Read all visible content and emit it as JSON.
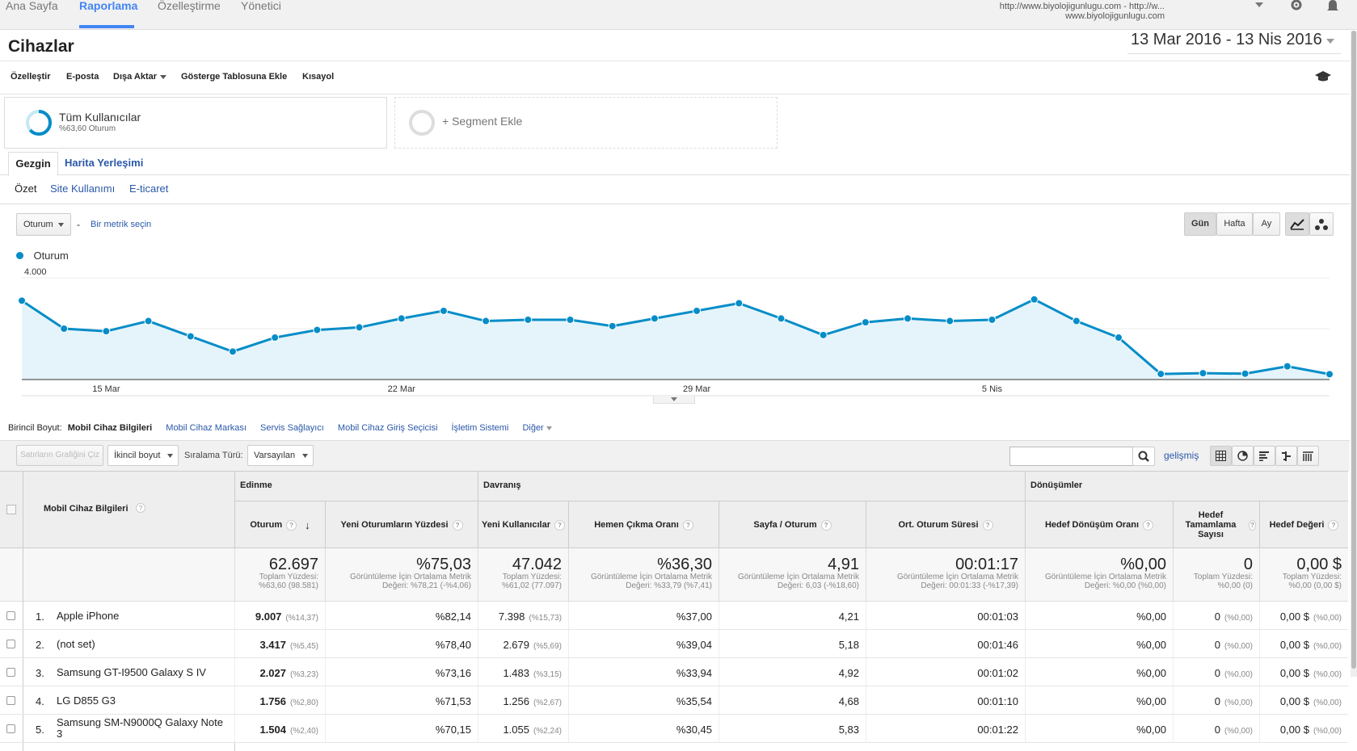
{
  "topnav": {
    "tabs": [
      "Ana Sayfa",
      "Raporlama",
      "Özelleştirme",
      "Yönetici"
    ],
    "active": "Raporlama",
    "property_line1": "http://www.biyolojigunlugu.com - http://w...",
    "property_line2": "www.biyolojigunlugu.com"
  },
  "header": {
    "title": "Cihazlar",
    "date_range": "13 Mar 2016 - 13 Nis 2016"
  },
  "toolbar": {
    "customize": "Özelleştir",
    "email": "E-posta",
    "export": "Dışa Aktar",
    "add_dashboard": "Gösterge Tablosuna Ekle",
    "shortcut": "Kısayol"
  },
  "segments": {
    "all_users_name": "Tüm Kullanıcılar",
    "all_users_sub": "%63,60 Oturum",
    "add_segment": "+ Segment Ekle"
  },
  "view_tabs": {
    "explorer": "Gezgin",
    "map": "Harita Yerleşimi"
  },
  "sub_tabs": {
    "summary": "Özet",
    "site_usage": "Site Kullanımı",
    "ecommerce": "E-ticaret"
  },
  "chart_controls": {
    "metric": "Oturum",
    "dash": "-",
    "pick_metric": "Bir metrik seçin",
    "day": "Gün",
    "week": "Hafta",
    "month": "Ay"
  },
  "chart_data": {
    "type": "area",
    "series": [
      {
        "name": "Oturum",
        "values": [
          3100,
          2000,
          1900,
          2300,
          1700,
          1100,
          1650,
          1950,
          2050,
          2400,
          2700,
          2300,
          2350,
          2350,
          2100,
          2400,
          2700,
          3000,
          2400,
          1750,
          2250,
          2400,
          2300,
          2350,
          3150,
          2300,
          1650,
          220,
          250,
          230,
          520,
          210
        ]
      }
    ],
    "color": "#058dc7",
    "fill": "#e5f4fb",
    "y_ticks": [
      "4.000",
      "2.000"
    ],
    "ylim": [
      0,
      4000
    ],
    "x_labels": [
      {
        "label": "15 Mar",
        "index": 2
      },
      {
        "label": "22 Mar",
        "index": 9
      },
      {
        "label": "29 Mar",
        "index": 16
      },
      {
        "label": "5 Nis",
        "index": 23
      }
    ],
    "grid": true,
    "legend": "top-left"
  },
  "dimensions": {
    "primary_label": "Birincil Boyut:",
    "active": "Mobil Cihaz Bilgileri",
    "options": [
      "Mobil Cihaz Markası",
      "Servis Sağlayıcı",
      "Mobil Cihaz Giriş Seçicisi",
      "İşletim Sistemi",
      "Diğer"
    ]
  },
  "table_controls": {
    "plot_rows": "Satırların Grafiğini Çiz",
    "secondary": "İkincil boyut",
    "sort_label": "Sıralama Türü:",
    "sort_value": "Varsayılan",
    "advanced": "gelişmiş"
  },
  "table": {
    "dimension_header": "Mobil Cihaz Bilgileri",
    "groups": [
      "Edinme",
      "Davranış",
      "Dönüşümler"
    ],
    "columns": [
      "Oturum",
      "Yeni Oturumların Yüzdesi",
      "Yeni Kullanıcılar",
      "Hemen Çıkma Oranı",
      "Sayfa / Oturum",
      "Ort. Oturum Süresi",
      "Hedef Dönüşüm Oranı",
      "Hedef Tamamlama Sayısı",
      "Hedef Değeri"
    ],
    "totals": [
      {
        "value": "62.697",
        "sub1": "Toplam Yüzdesi:",
        "sub2": "%63,60 (98.581)"
      },
      {
        "value": "%75,03",
        "sub1": "Görüntüleme İçin Ortalama Metrik",
        "sub2": "Değeri: %78,21 (-%4,06)"
      },
      {
        "value": "47.042",
        "sub1": "Toplam Yüzdesi:",
        "sub2": "%61,02 (77.097)"
      },
      {
        "value": "%36,30",
        "sub1": "Görüntüleme İçin Ortalama Metrik",
        "sub2": "Değeri: %33,79 (%7,41)"
      },
      {
        "value": "4,91",
        "sub1": "Görüntüleme İçin Ortalama Metrik",
        "sub2": "Değeri: 6,03 (-%18,60)"
      },
      {
        "value": "00:01:17",
        "sub1": "Görüntüleme İçin Ortalama Metrik",
        "sub2": "Değeri: 00:01:33 (-%17,39)"
      },
      {
        "value": "%0,00",
        "sub1": "Görüntüleme İçin Ortalama Metrik",
        "sub2": "Değeri: %0,00 (%0,00)"
      },
      {
        "value": "0",
        "sub1": "Toplam Yüzdesi:",
        "sub2": "%0,00 (0)"
      },
      {
        "value": "0,00 $",
        "sub1": "Toplam Yüzdesi:",
        "sub2": "%0,00 (0,00 $)"
      }
    ],
    "rows": [
      {
        "n": "1.",
        "name": "Apple iPhone",
        "sessions": "9.007",
        "sessions_pct": "(%14,37)",
        "new_pct": "%82,14",
        "new_users": "7.398",
        "new_users_pct": "(%15,73)",
        "bounce": "%37,00",
        "pages": "4,21",
        "duration": "00:01:03",
        "conv": "%0,00",
        "goals": "0",
        "goals_pct": "(%0,00)",
        "value": "0,00 $",
        "value_pct": "(%0,00)"
      },
      {
        "n": "2.",
        "name": "(not set)",
        "sessions": "3.417",
        "sessions_pct": "(%5,45)",
        "new_pct": "%78,40",
        "new_users": "2.679",
        "new_users_pct": "(%5,69)",
        "bounce": "%39,04",
        "pages": "5,18",
        "duration": "00:01:46",
        "conv": "%0,00",
        "goals": "0",
        "goals_pct": "(%0,00)",
        "value": "0,00 $",
        "value_pct": "(%0,00)"
      },
      {
        "n": "3.",
        "name": "Samsung GT-I9500 Galaxy S IV",
        "sessions": "2.027",
        "sessions_pct": "(%3,23)",
        "new_pct": "%73,16",
        "new_users": "1.483",
        "new_users_pct": "(%3,15)",
        "bounce": "%33,94",
        "pages": "4,92",
        "duration": "00:01:02",
        "conv": "%0,00",
        "goals": "0",
        "goals_pct": "(%0,00)",
        "value": "0,00 $",
        "value_pct": "(%0,00)"
      },
      {
        "n": "4.",
        "name": "LG D855 G3",
        "sessions": "1.756",
        "sessions_pct": "(%2,80)",
        "new_pct": "%71,53",
        "new_users": "1.256",
        "new_users_pct": "(%2,67)",
        "bounce": "%35,54",
        "pages": "4,68",
        "duration": "00:01:10",
        "conv": "%0,00",
        "goals": "0",
        "goals_pct": "(%0,00)",
        "value": "0,00 $",
        "value_pct": "(%0,00)"
      },
      {
        "n": "5.",
        "name": "Samsung SM-N9000Q Galaxy Note 3",
        "sessions": "1.504",
        "sessions_pct": "(%2,40)",
        "new_pct": "%70,15",
        "new_users": "1.055",
        "new_users_pct": "(%2,24)",
        "bounce": "%30,45",
        "pages": "5,83",
        "duration": "00:01:22",
        "conv": "%0,00",
        "goals": "0",
        "goals_pct": "(%0,00)",
        "value": "0,00 $",
        "value_pct": "(%0,00)"
      }
    ]
  }
}
